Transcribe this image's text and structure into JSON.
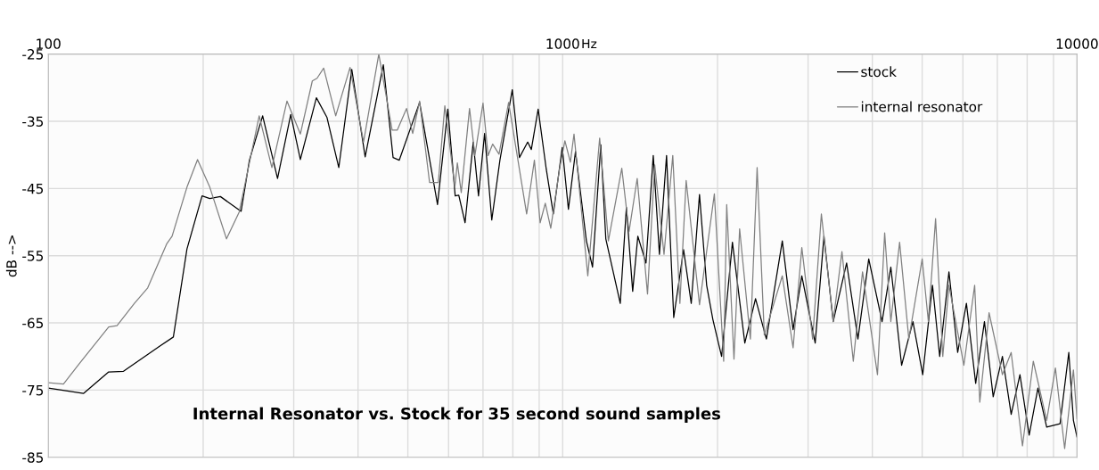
{
  "chart_data": {
    "type": "line",
    "title": "Internal Resonator vs. Stock for 35 second sound samples",
    "xlabel": "Hz",
    "ylabel": "dB -->",
    "log": "x",
    "grid": true,
    "legend": "top right",
    "line_style": "solid",
    "marker": "none",
    "xlim": [
      100,
      10000
    ],
    "ylim": [
      -85,
      -25
    ],
    "xticks": [
      100,
      {
        "value": 200,
        "label": null
      },
      {
        "value": 300,
        "label": null
      },
      {
        "value": 400,
        "label": null
      },
      {
        "value": 500,
        "label": null
      },
      {
        "value": 600,
        "label": null
      },
      {
        "value": 700,
        "label": null
      },
      {
        "value": 800,
        "label": null
      },
      {
        "value": 900,
        "label": null
      },
      1000,
      {
        "value": 2000,
        "label": null
      },
      {
        "value": 3000,
        "label": null
      },
      {
        "value": 4000,
        "label": null
      },
      {
        "value": 5000,
        "label": null
      },
      {
        "value": 6000,
        "label": null
      },
      {
        "value": 7000,
        "label": null
      },
      {
        "value": 8000,
        "label": null
      },
      {
        "value": 9000,
        "label": null
      },
      10000
    ],
    "yticks": [
      -85,
      -75,
      -65,
      -55,
      -45,
      -35,
      -25
    ],
    "series": [
      {
        "name": "stock",
        "color": "#000000",
        "x": [
          100,
          117,
          131,
          140,
          165,
          175,
          186,
          199,
          206,
          216,
          237,
          246,
          261,
          279,
          296,
          309,
          332,
          348,
          367,
          389,
          413,
          448,
          468,
          481,
          527,
          571,
          598,
          618,
          628,
          646,
          670,
          686,
          705,
          728,
          755,
          798,
          824,
          855,
          869,
          896,
          929,
          959,
          998,
          1026,
          1059,
          1112,
          1143,
          1186,
          1213,
          1294,
          1330,
          1368,
          1400,
          1452,
          1500,
          1542,
          1592,
          1644,
          1718,
          1778,
          1845,
          1905,
          1959,
          2037,
          2138,
          2260,
          2371,
          2489,
          2673,
          2805,
          2917,
          3097,
          3221,
          3357,
          3565,
          3750,
          3936,
          4178,
          4345,
          4560,
          4797,
          5012,
          5236,
          5408,
          5636,
          5861,
          6095,
          6353,
          6607,
          6871,
          7161,
          7447,
          7745,
          8072,
          8395,
          8730,
          9268,
          9638,
          9840,
          10000
        ],
        "values": [
          -74.7,
          -75.5,
          -72.3,
          -72.2,
          -68.4,
          -67.1,
          -54,
          -46.1,
          -46.5,
          -46.2,
          -48.4,
          -40.8,
          -34.2,
          -43.5,
          -34,
          -40.7,
          -31.5,
          -34.4,
          -41.9,
          -27.3,
          -40.3,
          -26.6,
          -40.4,
          -40.8,
          -32.2,
          -47.4,
          -33.2,
          -46.1,
          -46,
          -50.1,
          -38.1,
          -46.1,
          -36.8,
          -49.7,
          -40.8,
          -30.3,
          -40.4,
          -38.1,
          -39.2,
          -33.2,
          -42.1,
          -48.8,
          -38.9,
          -48.1,
          -39.5,
          -52.8,
          -56.7,
          -38.5,
          -52.5,
          -62.1,
          -47.8,
          -60.3,
          -52.1,
          -56.1,
          -40.1,
          -54.8,
          -40.1,
          -64.2,
          -54.1,
          -62.1,
          -45.9,
          -59.4,
          -64.5,
          -70,
          -53,
          -68,
          -61.4,
          -67.4,
          -52.8,
          -66,
          -58,
          -68,
          -52.1,
          -64.8,
          -56.1,
          -67.4,
          -55.5,
          -64.8,
          -56.7,
          -71.3,
          -64.8,
          -72.7,
          -59.4,
          -70,
          -57.4,
          -69.4,
          -62.1,
          -74,
          -64.8,
          -76,
          -70,
          -78.6,
          -72.7,
          -81.7,
          -74.7,
          -80.5,
          -80,
          -69.4,
          -79.5,
          -82
        ]
      },
      {
        "name": "internal resonator",
        "color": "#808080",
        "x": [
          100,
          107,
          115,
          131,
          136,
          147,
          156,
          170,
          174,
          186,
          195,
          206,
          222,
          235,
          257,
          272,
          291,
          309,
          326,
          333,
          343,
          362,
          386,
          410,
          439,
          466,
          477,
          497,
          511,
          527,
          551,
          573,
          590,
          617,
          624,
          635,
          659,
          675,
          700,
          716,
          731,
          752,
          785,
          851,
          881,
          904,
          925,
          948,
          986,
          1010,
          1035,
          1052,
          1119,
          1180,
          1227,
          1303,
          1346,
          1396,
          1462,
          1510,
          1574,
          1637,
          1690,
          1738,
          1845,
          1972,
          2056,
          2084,
          2153,
          2208,
          2317,
          2388,
          2466,
          2673,
          2805,
          2917,
          3062,
          3184,
          3357,
          3491,
          3673,
          3828,
          4093,
          4227,
          4345,
          4519,
          4710,
          5000,
          5140,
          5309,
          5483,
          5636,
          6026,
          6324,
          6471,
          6745,
          7161,
          7447,
          7834,
          8222,
          8730,
          9078,
          9462,
          9840,
          10000
        ],
        "values": [
          -73.9,
          -74.1,
          -71,
          -65.6,
          -65.4,
          -62.1,
          -59.8,
          -53.2,
          -52.1,
          -44.8,
          -40.7,
          -44.8,
          -52.5,
          -48.5,
          -34.2,
          -41.9,
          -32,
          -36.9,
          -29,
          -28.6,
          -27.1,
          -34.2,
          -27,
          -38.1,
          -25,
          -36.3,
          -36.3,
          -33.1,
          -36.8,
          -32,
          -44.1,
          -44.1,
          -32.7,
          -44.8,
          -41.2,
          -45.6,
          -33.1,
          -40.1,
          -32.3,
          -40.1,
          -38.4,
          -39.9,
          -32.2,
          -48.8,
          -40.8,
          -50.1,
          -47.2,
          -50.9,
          -42.1,
          -37.9,
          -41.1,
          -36.9,
          -58,
          -37.5,
          -52.8,
          -42,
          -51.4,
          -43.5,
          -60.7,
          -41.5,
          -54.8,
          -40.1,
          -62.1,
          -43.8,
          -62.3,
          -45.8,
          -70.7,
          -47.4,
          -70.4,
          -51,
          -67.4,
          -41.9,
          -66.8,
          -58,
          -68.7,
          -53.8,
          -67.4,
          -48.8,
          -64.8,
          -54.4,
          -70.7,
          -57.4,
          -72.7,
          -51.6,
          -64.8,
          -53,
          -67.4,
          -55.5,
          -64.8,
          -49.5,
          -70,
          -59.4,
          -71.3,
          -59.4,
          -76.8,
          -63.5,
          -72.7,
          -69.4,
          -83.3,
          -70.7,
          -79.5,
          -71.7,
          -83.7,
          -72,
          -79.3
        ]
      }
    ]
  }
}
